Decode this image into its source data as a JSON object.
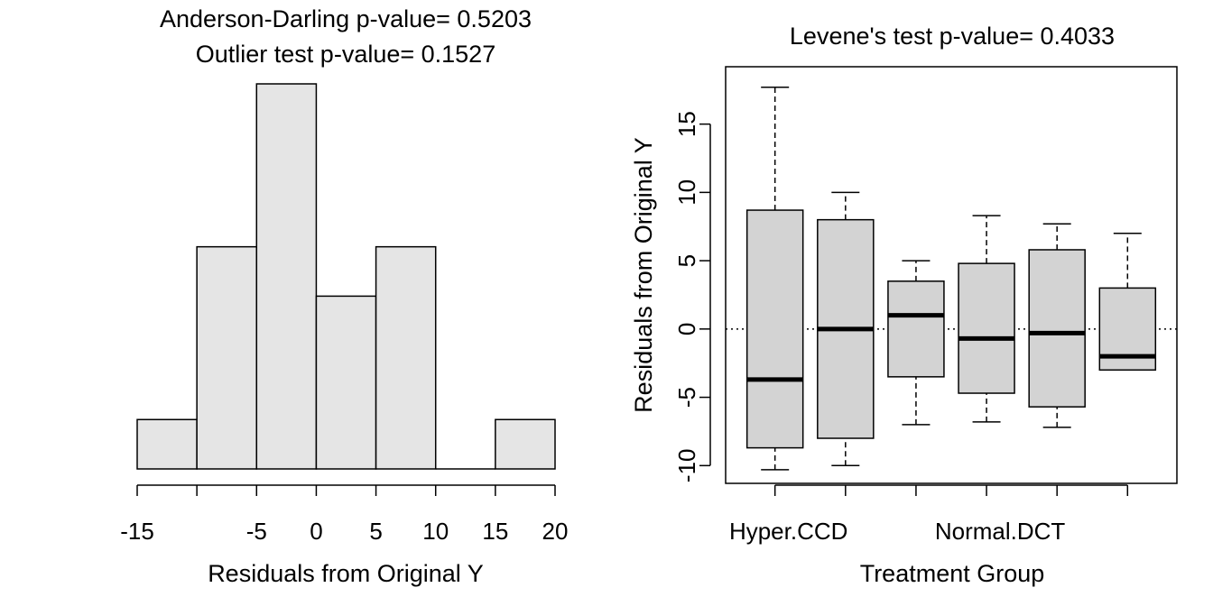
{
  "chart_data": [
    {
      "type": "histogram",
      "title_lines": [
        "Anderson-Darling p-value= 0.5203",
        "Outlier test p-value= 0.1527"
      ],
      "xlabel": "Residuals from Original Y",
      "xlim": [
        -15,
        20
      ],
      "x_ticks": [
        -15,
        -10,
        -5,
        0,
        5,
        10,
        15,
        20
      ],
      "x_tick_labels": [
        "-15",
        "",
        "-5",
        "0",
        "5",
        "10",
        "15",
        "20"
      ],
      "bins": [
        {
          "x0": -15,
          "x1": -10,
          "count": 1.0
        },
        {
          "x0": -10,
          "x1": -5,
          "count": 4.5
        },
        {
          "x0": -5,
          "x1": 0,
          "count": 7.8
        },
        {
          "x0": 0,
          "x1": 5,
          "count": 3.5
        },
        {
          "x0": 5,
          "x1": 10,
          "count": 4.5
        },
        {
          "x0": 10,
          "x1": 15,
          "count": 0
        },
        {
          "x0": 15,
          "x1": 20,
          "count": 1.0
        }
      ],
      "ylim": [
        0,
        7.8
      ],
      "bar_fill": "#e5e5e5"
    },
    {
      "type": "boxplot",
      "title": "Levene's test p-value= 0.4033",
      "xlabel": "Treatment Group",
      "ylabel": "Residuals from Original Y",
      "ylim": [
        -11.3,
        19.2
      ],
      "y_ticks": [
        -10,
        -5,
        0,
        5,
        10,
        15
      ],
      "y_tick_labels": [
        "-10",
        "-5",
        "0",
        "5",
        "10",
        "15"
      ],
      "reference_line": 0,
      "x_tick_labels": [
        "Hyper.CCD",
        "",
        "",
        "Normal.DCT",
        "",
        ""
      ],
      "boxes": [
        {
          "min": -10.3,
          "q1": -8.7,
          "median": -3.7,
          "q3": 8.7,
          "max": 17.7
        },
        {
          "min": -10.0,
          "q1": -8.0,
          "median": 0.0,
          "q3": 8.0,
          "max": 10.0
        },
        {
          "min": -7.0,
          "q1": -3.5,
          "median": 1.0,
          "q3": 3.5,
          "max": 5.0
        },
        {
          "min": -6.8,
          "q1": -4.7,
          "median": -0.7,
          "q3": 4.8,
          "max": 8.3
        },
        {
          "min": -7.2,
          "q1": -5.7,
          "median": -0.3,
          "q3": 5.8,
          "max": 7.7
        },
        {
          "min": -3.0,
          "q1": -3.0,
          "median": -2.0,
          "q3": 3.0,
          "max": 7.0
        }
      ],
      "box_fill": "#d3d3d3"
    }
  ]
}
